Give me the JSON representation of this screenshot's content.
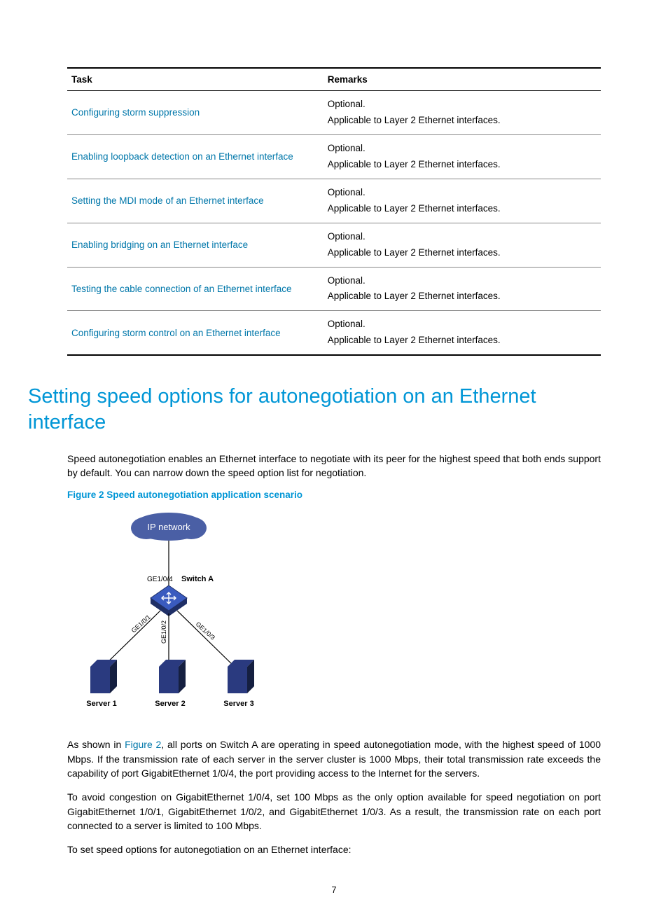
{
  "table": {
    "headers": {
      "task": "Task",
      "remarks": "Remarks"
    },
    "rows": [
      {
        "task": "Configuring storm suppression",
        "remark1": "Optional.",
        "remark2": "Applicable to Layer 2 Ethernet interfaces."
      },
      {
        "task": "Enabling loopback detection on an Ethernet interface",
        "remark1": "Optional.",
        "remark2": "Applicable to Layer 2 Ethernet interfaces."
      },
      {
        "task": "Setting the MDI mode of an Ethernet interface",
        "remark1": "Optional.",
        "remark2": "Applicable to Layer 2 Ethernet interfaces."
      },
      {
        "task": "Enabling bridging on an Ethernet interface",
        "remark1": "Optional.",
        "remark2": "Applicable to Layer 2 Ethernet interfaces."
      },
      {
        "task": "Testing the cable connection of an Ethernet interface",
        "remark1": "Optional.",
        "remark2": "Applicable to Layer 2 Ethernet interfaces."
      },
      {
        "task": "Configuring storm control on an Ethernet interface",
        "remark1": "Optional.",
        "remark2": "Applicable to Layer 2 Ethernet interfaces."
      }
    ]
  },
  "section_title": "Setting speed options for autonegotiation on an Ethernet interface",
  "para_intro": "Speed autonegotiation enables an Ethernet interface to negotiate with its peer for the highest speed that both ends support by default. You can narrow down the speed option list for negotiation.",
  "figure": {
    "caption": "Figure 2 Speed autonegotiation application scenario",
    "cloud_label": "IP network",
    "switch_label": "Switch A",
    "port_labels": {
      "up": "GE1/0/4",
      "l": "GE1/0/1",
      "m": "GE1/0/2",
      "r": "GE1/0/3"
    },
    "server_labels": {
      "s1": "Server 1",
      "s2": "Server 2",
      "s3": "Server 3"
    },
    "colors": {
      "cloud_fill": "#4a5fa5",
      "cloud_text": "#ffffff",
      "switch_fill": "#3a5bbf",
      "switch_edge": "#1f2f66",
      "server_fill": "#2a3a7f",
      "server_edge": "#151f40",
      "line": "#000000",
      "label": "#000000"
    }
  },
  "para_as_shown_pre": "As shown in ",
  "para_as_shown_link": "Figure 2",
  "para_as_shown_post": ", all ports on Switch A are operating in speed autonegotiation mode, with the highest speed of 1000 Mbps. If the transmission rate of each server in the server cluster is 1000 Mbps, their total transmission rate exceeds the capability of port GigabitEthernet 1/0/4, the port providing access to the Internet for the servers.",
  "para_avoid": "To avoid congestion on GigabitEthernet 1/0/4, set 100 Mbps as the only option available for speed negotiation on port GigabitEthernet 1/0/1, GigabitEthernet 1/0/2, and GigabitEthernet 1/0/3. As a result, the transmission rate on each port connected to a server is limited to 100 Mbps.",
  "para_toset": "To set speed options for autonegotiation on an Ethernet interface:",
  "page_number": "7"
}
